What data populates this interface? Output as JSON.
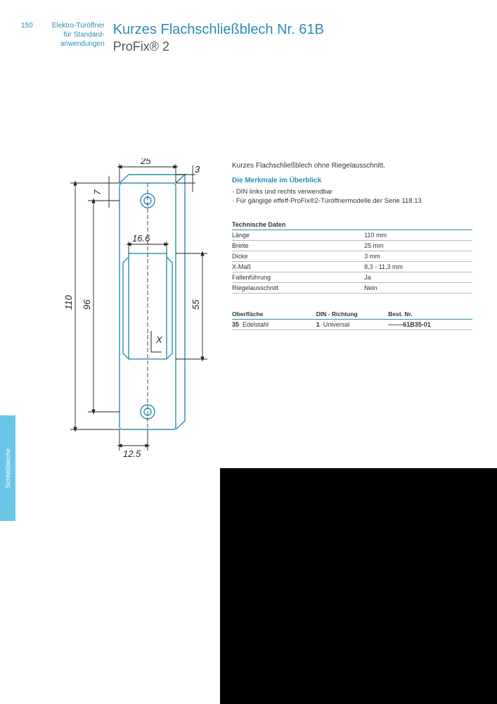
{
  "header": {
    "page_number": "150",
    "breadcrumb_line1": "Elektro-Türöffner",
    "breadcrumb_line2": "für Standard-",
    "breadcrumb_line3": "anwendungen",
    "title": "Kurzes Flachschließblech Nr. 61B",
    "subtitle": "ProFix® 2"
  },
  "side_tab": "Schließbleche",
  "intro": "Kurzes Flachschließblech ohne Riegelausschnitt.",
  "overview": {
    "title": "Die Merkmale im Überblick",
    "items": [
      "DIN links und rechts verwendbar",
      "Für gängige effeff-ProFix®2-Türöffnermodelle der Serie 118.13"
    ]
  },
  "spec_table": {
    "header": "Technische Daten",
    "rows": [
      {
        "label": "Länge",
        "value": "110 mm"
      },
      {
        "label": "Breite",
        "value": "25 mm"
      },
      {
        "label": "Dicke",
        "value": "3 mm"
      },
      {
        "label": "X-Maß",
        "value": "8,3 - 11,3 mm"
      },
      {
        "label": "Fallenführung",
        "value": "Ja"
      },
      {
        "label": "Riegelausschnitt",
        "value": "Nein"
      }
    ]
  },
  "order_table": {
    "headers": [
      "Oberfläche",
      "DIN - Richtung",
      "Best. Nr."
    ],
    "rows": [
      {
        "surface_code": "35",
        "surface": "Edelstahl",
        "din_code": "1",
        "din": "Universal",
        "bestnr": "-------61B35-01"
      }
    ]
  },
  "drawing": {
    "dims": {
      "width_top": "25",
      "thickness": "3",
      "top_margin": "7",
      "slot_width": "16.6",
      "bottom_half": "12.5",
      "height_total": "110",
      "inner_96": "96",
      "slot_55": "55",
      "x_label": "X"
    },
    "colors": {
      "outline": "#2a8db4",
      "dim": "#222222",
      "dash": "#222222"
    },
    "stroke_width": 1.2
  }
}
